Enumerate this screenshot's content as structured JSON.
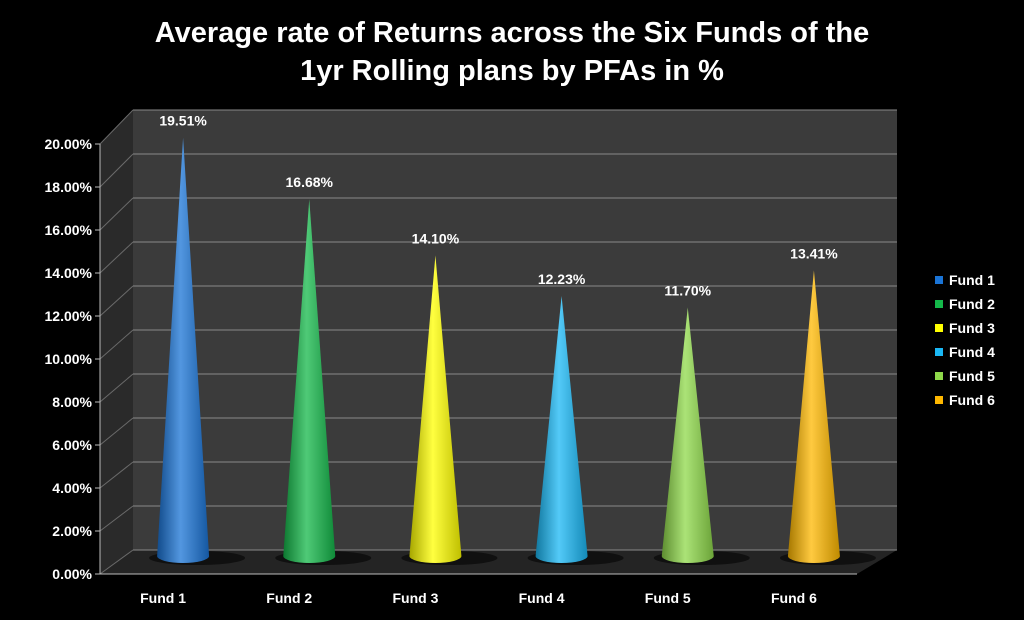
{
  "chart_data": {
    "type": "bar",
    "title_line1": "Average rate of Returns across the Six Funds of the",
    "title_line2": "1yr Rolling plans by PFAs in %",
    "categories": [
      "Fund 1",
      "Fund 2",
      "Fund 3",
      "Fund 4",
      "Fund 5",
      "Fund 6"
    ],
    "values": [
      19.51,
      16.68,
      14.1,
      12.23,
      11.7,
      13.41
    ],
    "value_labels": [
      "19.51%",
      "16.68%",
      "14.10%",
      "12.23%",
      "11.70%",
      "13.41%"
    ],
    "colors": [
      "#1a74d6",
      "#14b84a",
      "#ffff00",
      "#1ab8f5",
      "#8fd94a",
      "#ffb800"
    ],
    "ylim": [
      0,
      20
    ],
    "yticks": [
      0,
      2,
      4,
      6,
      8,
      10,
      12,
      14,
      16,
      18,
      20
    ],
    "ytick_labels": [
      "0.00%",
      "2.00%",
      "4.00%",
      "6.00%",
      "8.00%",
      "10.00%",
      "12.00%",
      "14.00%",
      "16.00%",
      "18.00%",
      "20.00%"
    ],
    "grid": true,
    "legend": {
      "placement": "right",
      "entries": [
        "Fund 1",
        "Fund 2",
        "Fund 3",
        "Fund 4",
        "Fund 5",
        "Fund 6"
      ]
    },
    "style": "3d-cone"
  }
}
